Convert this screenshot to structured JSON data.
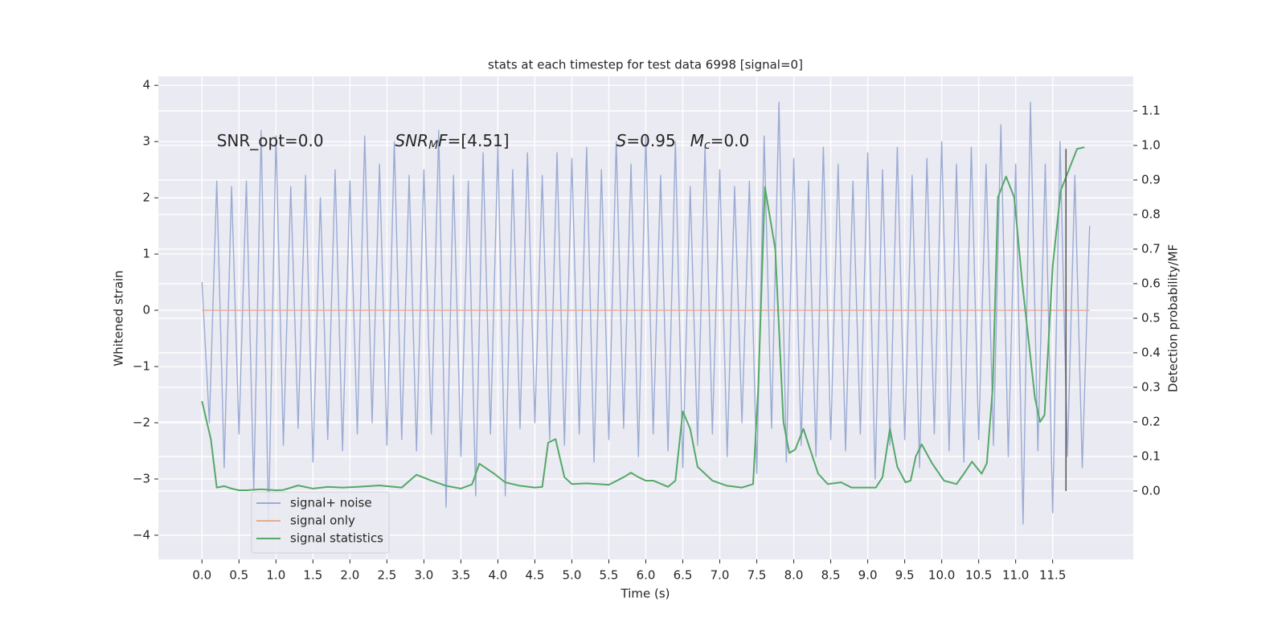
{
  "chart_data": {
    "type": "line",
    "title": "stats at each timestep for test data 6998 [signal=0]",
    "xlabel": "Time (s)",
    "ylabel": "Whitened strain",
    "y2label": "Detection probability/MF",
    "xlim": [
      -0.59,
      12.59
    ],
    "ylim": [
      -4.43,
      4.16
    ],
    "y2lim": [
      -0.198,
      1.2
    ],
    "xticks": [
      {
        "value": 0,
        "label": "0.0"
      },
      0.5,
      {
        "value": 1,
        "label": "1.0"
      },
      1.5,
      {
        "value": 2,
        "label": "2.0"
      },
      2.5,
      {
        "value": 3,
        "label": "3.0"
      },
      3.5,
      {
        "value": 4,
        "label": "4.0"
      },
      4.5,
      {
        "value": 5,
        "label": "5.0"
      },
      5.5,
      {
        "value": 6,
        "label": "6.0"
      },
      6.5,
      {
        "value": 7,
        "label": "7.0"
      },
      7.5,
      {
        "value": 8,
        "label": "8.0"
      },
      8.5,
      {
        "value": 9,
        "label": "9.0"
      },
      9.5,
      {
        "value": 10,
        "label": "10.0"
      },
      10.5,
      {
        "value": 11,
        "label": "11.0"
      },
      11.5
    ],
    "yticks": [
      {
        "value": -4,
        "label": "−4"
      },
      {
        "value": -3,
        "label": "−3"
      },
      {
        "value": -2,
        "label": "−2"
      },
      {
        "value": -1,
        "label": "−1"
      },
      0,
      1,
      2,
      3,
      4
    ],
    "y2ticks": [
      {
        "value": 0,
        "label": "0.0"
      },
      0.1,
      0.2,
      0.3,
      0.4,
      0.5,
      0.6,
      0.7,
      0.8,
      0.9,
      {
        "value": 1,
        "label": "1.0"
      },
      1.1
    ],
    "grid": true,
    "legend": "lower left",
    "series": [
      {
        "name": "signal+ noise",
        "color": "#9aabd3",
        "x": [
          0,
          0.1,
          0.2,
          0.3,
          0.4,
          0.5,
          0.6,
          0.7,
          0.8,
          0.9,
          1,
          1.1,
          1.2,
          1.3,
          1.4,
          1.5,
          1.6,
          1.7,
          1.8,
          1.9,
          2,
          2.1,
          2.2,
          2.3,
          2.4,
          2.5,
          2.6,
          2.7,
          2.8,
          2.9,
          3,
          3.1,
          3.2,
          3.3,
          3.4,
          3.5,
          3.6,
          3.7,
          3.8,
          3.9,
          4,
          4.1,
          4.2,
          4.3,
          4.4,
          4.5,
          4.6,
          4.7,
          4.8,
          4.9,
          5,
          5.1,
          5.2,
          5.3,
          5.4,
          5.5,
          5.6,
          5.7,
          5.8,
          5.9,
          6,
          6.1,
          6.2,
          6.3,
          6.4,
          6.5,
          6.6,
          6.7,
          6.8,
          6.9,
          7,
          7.1,
          7.2,
          7.3,
          7.4,
          7.5,
          7.6,
          7.7,
          7.8,
          7.9,
          8,
          8.1,
          8.2,
          8.3,
          8.4,
          8.5,
          8.6,
          8.7,
          8.8,
          8.9,
          9,
          9.1,
          9.2,
          9.3,
          9.4,
          9.5,
          9.6,
          9.7,
          9.8,
          9.9,
          10,
          10.1,
          10.2,
          10.3,
          10.4,
          10.5,
          10.6,
          10.7,
          10.8,
          10.9,
          11,
          11.1,
          11.2,
          11.3,
          11.4,
          11.5,
          11.6,
          11.7,
          11.8,
          11.9,
          12
        ],
        "values": [
          0.5,
          -2.0,
          2.3,
          -2.8,
          2.2,
          -2.2,
          2.3,
          -3.2,
          3.2,
          -3.8,
          3.1,
          -2.4,
          2.2,
          -2.1,
          2.4,
          -2.7,
          2.0,
          -2.3,
          2.5,
          -2.5,
          2.3,
          -2.2,
          3.1,
          -2.0,
          2.6,
          -2.4,
          3.0,
          -2.3,
          2.4,
          -2.5,
          2.5,
          -2.2,
          3.2,
          -3.5,
          2.4,
          -2.6,
          2.3,
          -3.3,
          2.8,
          -2.2,
          2.9,
          -3.3,
          2.5,
          -2.1,
          2.8,
          -2.0,
          2.4,
          -2.3,
          2.8,
          -2.4,
          2.7,
          -2.2,
          2.9,
          -2.7,
          2.5,
          -2.3,
          3.0,
          -2.1,
          2.6,
          -2.6,
          3.1,
          -2.2,
          2.4,
          -2.5,
          3.0,
          -2.8,
          2.2,
          -2.4,
          2.9,
          -2.2,
          2.5,
          -2.6,
          2.2,
          -2.0,
          2.3,
          -2.9,
          3.1,
          -2.1,
          3.7,
          -2.7,
          2.7,
          -2.4,
          2.3,
          -2.6,
          2.9,
          -2.3,
          2.6,
          -2.5,
          2.3,
          -2.2,
          2.8,
          -3.0,
          2.5,
          -2.4,
          2.9,
          -2.3,
          2.4,
          -2.8,
          2.7,
          -2.2,
          3.0,
          -2.5,
          2.6,
          -2.7,
          2.9,
          -2.3,
          2.6,
          -2.4,
          3.3,
          -2.6,
          2.6,
          -3.8,
          3.7,
          -2.5,
          2.6,
          -3.6,
          3.0,
          -2.6,
          2.4,
          -2.8,
          1.5
        ]
      },
      {
        "name": "signal only",
        "color": "#e6ab92",
        "x": [
          0,
          12
        ],
        "values": [
          0,
          0
        ]
      },
      {
        "name": "signal statistics",
        "color": "#55a868",
        "axis": "y2",
        "x": [
          0,
          0.12,
          0.2,
          0.3,
          0.4,
          0.5,
          0.6,
          0.8,
          1.0,
          1.1,
          1.3,
          1.5,
          1.7,
          1.9,
          2.1,
          2.4,
          2.7,
          2.9,
          3.1,
          3.3,
          3.5,
          3.65,
          3.75,
          3.95,
          4.1,
          4.3,
          4.5,
          4.6,
          4.68,
          4.78,
          4.9,
          5.0,
          5.2,
          5.5,
          5.7,
          5.8,
          5.9,
          6.0,
          6.1,
          6.3,
          6.4,
          6.5,
          6.6,
          6.7,
          6.9,
          7.1,
          7.3,
          7.45,
          7.52,
          7.61,
          7.75,
          7.86,
          7.94,
          8.02,
          8.13,
          8.33,
          8.46,
          8.64,
          8.78,
          9.11,
          9.2,
          9.3,
          9.4,
          9.51,
          9.58,
          9.65,
          9.73,
          9.87,
          10.03,
          10.2,
          10.3,
          10.41,
          10.54,
          10.61,
          10.69,
          10.76,
          10.87,
          10.98,
          11.09,
          11.26,
          11.33,
          11.39,
          11.5,
          11.61,
          11.72,
          11.83,
          11.93
        ],
        "values": [
          0.26,
          0.15,
          0.01,
          0.014,
          0.007,
          0.002,
          0.002,
          0.005,
          0.002,
          0.003,
          0.016,
          0.007,
          0.012,
          0.01,
          0.012,
          0.016,
          0.01,
          0.047,
          0.03,
          0.015,
          0.007,
          0.019,
          0.079,
          0.05,
          0.025,
          0.015,
          0.01,
          0.012,
          0.14,
          0.15,
          0.04,
          0.02,
          0.022,
          0.018,
          0.04,
          0.053,
          0.04,
          0.03,
          0.03,
          0.012,
          0.03,
          0.23,
          0.18,
          0.07,
          0.03,
          0.015,
          0.01,
          0.02,
          0.3,
          0.88,
          0.7,
          0.2,
          0.11,
          0.12,
          0.18,
          0.05,
          0.02,
          0.025,
          0.01,
          0.01,
          0.04,
          0.18,
          0.07,
          0.025,
          0.03,
          0.1,
          0.135,
          0.08,
          0.03,
          0.02,
          0.05,
          0.085,
          0.05,
          0.08,
          0.3,
          0.85,
          0.91,
          0.85,
          0.6,
          0.27,
          0.2,
          0.22,
          0.65,
          0.87,
          0.93,
          0.99,
          0.995
        ]
      }
    ],
    "vline": {
      "x": 11.68,
      "ymin": 0,
      "ymax": 0.99,
      "color": "#555555"
    },
    "annotations": [
      {
        "x": 0.2,
        "y": 3.0,
        "parts": [
          {
            "text": "SNR_opt=0.0"
          }
        ]
      },
      {
        "x": 2.61,
        "y": 3.0,
        "parts": [
          {
            "text": "SNR",
            "italic": true
          },
          {
            "text": "M",
            "italic": true,
            "sub": true
          },
          {
            "text": "F",
            "italic": true
          },
          {
            "text": "=[4.51]"
          }
        ]
      },
      {
        "x": 5.6,
        "y": 3.0,
        "parts": [
          {
            "text": "S",
            "italic": true
          },
          {
            "text": "=0.95"
          }
        ]
      },
      {
        "x": 6.6,
        "y": 3.0,
        "parts": [
          {
            "text": "M",
            "italic": true
          },
          {
            "text": "c",
            "italic": true,
            "sub": true
          },
          {
            "text": "=0.0"
          }
        ]
      }
    ]
  }
}
